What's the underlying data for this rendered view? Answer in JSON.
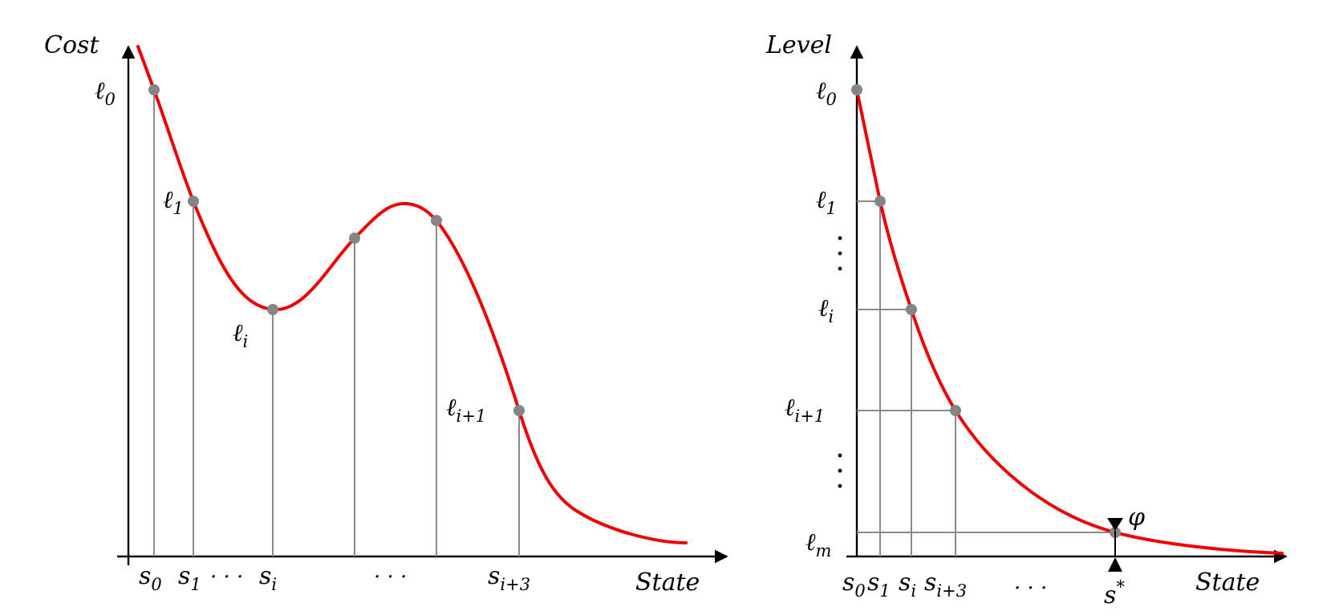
{
  "colors": {
    "curve": "#ee0000",
    "point": "#858585",
    "guide": "#8a8a8a",
    "axis": "#000000"
  },
  "left_panel": {
    "y_axis_label": "Cost",
    "x_axis_label": "State",
    "level_labels": [
      {
        "base": "ℓ",
        "sub": "0"
      },
      {
        "base": "ℓ",
        "sub": "1"
      },
      {
        "base": "ℓ",
        "sub": "i"
      },
      {
        "base": "ℓ",
        "sub": "i+1"
      }
    ],
    "state_labels": [
      {
        "base": "s",
        "sub": "0"
      },
      {
        "base": "s",
        "sub": "1"
      },
      {
        "base": "s",
        "sub": "i"
      },
      {
        "base": "s",
        "sub": "i+3"
      }
    ],
    "ellipsis_between": "· · ·",
    "ellipsis_middle": "· · ·"
  },
  "right_panel": {
    "y_axis_label": "Level",
    "x_axis_label": "State",
    "level_labels": [
      {
        "base": "ℓ",
        "sub": "0"
      },
      {
        "base": "ℓ",
        "sub": "1"
      },
      {
        "base": "ℓ",
        "sub": "i"
      },
      {
        "base": "ℓ",
        "sub": "i+1"
      },
      {
        "base": "ℓ",
        "sub": "m"
      }
    ],
    "state_labels": [
      {
        "base": "s",
        "sub": "0"
      },
      {
        "base": "s",
        "sub": "1"
      },
      {
        "base": "s",
        "sub": "i"
      },
      {
        "base": "s",
        "sub": "i+3"
      }
    ],
    "ellipsis_x": "· · ·",
    "target_state": {
      "base": "s",
      "sup": "*"
    },
    "tolerance_symbol": "φ"
  }
}
